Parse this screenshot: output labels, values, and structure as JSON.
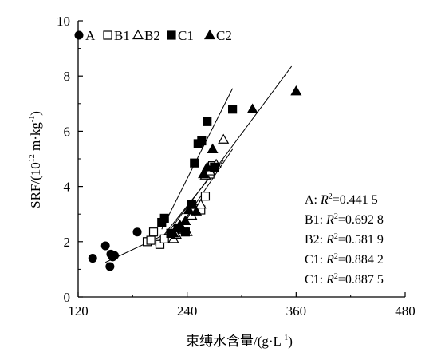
{
  "chart_data": {
    "type": "scatter",
    "title": "",
    "xlabel": "束缚水含量/(g·L",
    "xlabel_sup": "-1",
    "xlabel_end": ")",
    "ylabel": "SRF/(10",
    "ylabel_sup1": "12",
    "ylabel_mid": " m·kg",
    "ylabel_sup2": "-1",
    "ylabel_end": ")",
    "xlim": [
      120,
      480
    ],
    "ylim": [
      0,
      10
    ],
    "x_ticks": [
      "120",
      "240",
      "360",
      "480"
    ],
    "y_ticks": [
      "0",
      "2",
      "4",
      "6",
      "8",
      "10"
    ],
    "grid": false,
    "legend": "top-left",
    "series": [
      {
        "name": "A",
        "marker": "circle-filled",
        "points": [
          [
            136,
            1.4
          ],
          [
            150,
            1.85
          ],
          [
            155,
            1.1
          ],
          [
            156,
            1.55
          ],
          [
            158,
            1.45
          ],
          [
            160,
            1.5
          ],
          [
            185,
            2.35
          ]
        ],
        "fit": [
          [
            150,
            1.25
          ],
          [
            218,
            2.3
          ]
        ]
      },
      {
        "name": "B1",
        "marker": "square-open",
        "points": [
          [
            196,
            2.0
          ],
          [
            200,
            2.05
          ],
          [
            203,
            2.35
          ],
          [
            210,
            1.9
          ],
          [
            215,
            2.1
          ],
          [
            222,
            2.3
          ],
          [
            230,
            2.45
          ],
          [
            248,
            3.2
          ],
          [
            255,
            3.15
          ],
          [
            260,
            3.65
          ],
          [
            265,
            4.45
          ],
          [
            268,
            4.75
          ]
        ],
        "fit": [
          [
            205,
            1.85
          ],
          [
            280,
            4.95
          ]
        ]
      },
      {
        "name": "B2",
        "marker": "triangle-open",
        "points": [
          [
            225,
            2.1
          ],
          [
            228,
            2.25
          ],
          [
            232,
            2.6
          ],
          [
            235,
            2.45
          ],
          [
            240,
            2.35
          ],
          [
            245,
            2.95
          ],
          [
            255,
            3.35
          ],
          [
            260,
            4.4
          ],
          [
            265,
            4.55
          ],
          [
            272,
            4.8
          ],
          [
            280,
            5.7
          ]
        ],
        "fit": [
          [
            222,
            2.05
          ],
          [
            290,
            5.35
          ]
        ]
      },
      {
        "name": "C1",
        "marker": "square-filled",
        "points": [
          [
            212,
            2.7
          ],
          [
            215,
            2.85
          ],
          [
            222,
            2.3
          ],
          [
            230,
            2.5
          ],
          [
            238,
            2.35
          ],
          [
            245,
            3.35
          ],
          [
            248,
            4.85
          ],
          [
            252,
            5.55
          ],
          [
            256,
            5.65
          ],
          [
            262,
            6.35
          ],
          [
            270,
            4.7
          ],
          [
            290,
            6.8
          ]
        ],
        "fit": [
          [
            212,
            2.45
          ],
          [
            290,
            7.55
          ]
        ]
      },
      {
        "name": "C2",
        "marker": "triangle-filled",
        "points": [
          [
            225,
            2.3
          ],
          [
            232,
            2.6
          ],
          [
            238,
            2.75
          ],
          [
            242,
            3.15
          ],
          [
            250,
            3.1
          ],
          [
            258,
            4.45
          ],
          [
            262,
            4.7
          ],
          [
            268,
            5.35
          ],
          [
            312,
            6.8
          ],
          [
            360,
            7.45
          ]
        ],
        "fit": [
          [
            215,
            2.15
          ],
          [
            355,
            8.35
          ]
        ]
      }
    ],
    "r2_annotations": [
      {
        "prefix": "A: ",
        "r": "R",
        "sup": "2",
        "value": "=0.441 5"
      },
      {
        "prefix": "B1: ",
        "r": "R",
        "sup": "2",
        "value": "=0.692 8"
      },
      {
        "prefix": "B2: ",
        "r": "R",
        "sup": "2",
        "value": "=0.581 9"
      },
      {
        "prefix": "C1: ",
        "r": "R",
        "sup": "2",
        "value": "=0.884 2"
      },
      {
        "prefix": "C1: ",
        "r": "R",
        "sup": "2",
        "value": "=0.887 5"
      }
    ]
  }
}
